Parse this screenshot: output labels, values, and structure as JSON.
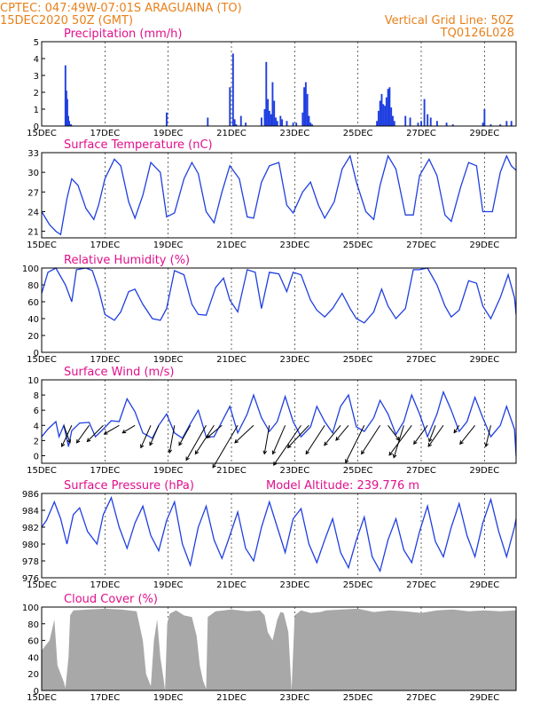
{
  "header": {
    "line1": "CPTEC:   047:49W-07:01S   ARAGUAINA (TO)",
    "line2": "15DEC2020 50Z (GMT)",
    "grid_note": "Vertical Grid Line: 50Z",
    "code": "TQ0126L028"
  },
  "colors": {
    "header": "#e8801a",
    "title": "#e0108c",
    "series": "#1f3fe0",
    "cloud": "#a8a8a8",
    "arrow": "#000000"
  },
  "chart_data": [
    {
      "type": "bar",
      "title": "Precipitation (mm/h)",
      "xlabel": "",
      "ylabel": "",
      "x_ticks": [
        "15DEC",
        "17DEC",
        "19DEC",
        "21DEC",
        "23DEC",
        "25DEC",
        "27DEC",
        "29DEC"
      ],
      "x_range": [
        0,
        15
      ],
      "ylim": [
        0,
        5
      ],
      "y_ticks": [
        0,
        1,
        2,
        3,
        4,
        5
      ],
      "x": [
        0.75,
        0.78,
        0.81,
        0.84,
        0.87,
        0.9,
        0.93,
        3.95,
        5.25,
        5.95,
        6.05,
        6.1,
        6.15,
        6.3,
        6.45,
        6.95,
        7.05,
        7.1,
        7.15,
        7.2,
        7.25,
        7.3,
        7.35,
        7.4,
        7.45,
        7.55,
        7.6,
        7.75,
        7.95,
        8.05,
        8.25,
        8.3,
        8.35,
        8.4,
        8.45,
        8.5,
        8.55,
        10.6,
        10.65,
        10.7,
        10.75,
        10.8,
        10.85,
        10.9,
        10.95,
        11.0,
        11.05,
        11.1,
        11.15,
        11.5,
        11.65,
        11.9,
        12.0,
        12.1,
        12.2,
        12.3,
        12.5,
        12.8,
        13.0,
        13.95,
        14.0,
        14.2,
        14.5,
        14.7,
        14.85
      ],
      "values": [
        3.6,
        2.1,
        1.6,
        0.6,
        0.3,
        0.1,
        0.1,
        0.8,
        0.5,
        2.3,
        4.3,
        0.4,
        0.1,
        0.6,
        0.2,
        0.5,
        1.0,
        3.8,
        1.6,
        0.9,
        0.7,
        2.6,
        1.5,
        0.5,
        0.3,
        0.6,
        0.4,
        0.3,
        0.2,
        0.2,
        0.8,
        2.3,
        2.6,
        1.9,
        0.6,
        0.2,
        0.1,
        0.3,
        0.9,
        1.5,
        1.9,
        1.3,
        1.2,
        1.7,
        2.2,
        2.3,
        1.1,
        0.6,
        0.3,
        0.6,
        0.5,
        0.2,
        0.3,
        1.6,
        0.7,
        0.5,
        0.3,
        0.2,
        0.1,
        0.2,
        1.0,
        0.1,
        0.1,
        0.3,
        0.3
      ]
    },
    {
      "type": "line",
      "title": "Surface Temperature (nC)",
      "x_ticks": [
        "15DEC",
        "17DEC",
        "19DEC",
        "21DEC",
        "23DEC",
        "25DEC",
        "27DEC",
        "29DEC"
      ],
      "x_range": [
        0,
        15
      ],
      "ylim": [
        20,
        33
      ],
      "y_ticks": [
        21,
        24,
        27,
        30,
        33
      ],
      "series": [
        {
          "x": [
            0,
            0.25,
            0.45,
            0.6,
            0.8,
            0.95,
            1.15,
            1.4,
            1.65,
            1.8,
            2.0,
            2.3,
            2.5,
            2.75,
            2.95,
            3.2,
            3.45,
            3.75,
            3.95,
            4.2,
            4.5,
            4.75,
            4.95,
            5.2,
            5.45,
            5.7,
            5.95,
            6.25,
            6.5,
            6.7,
            6.95,
            7.2,
            7.5,
            7.75,
            7.95,
            8.25,
            8.5,
            8.75,
            8.95,
            9.25,
            9.5,
            9.75,
            9.95,
            10.25,
            10.5,
            10.7,
            10.95,
            11.2,
            11.5,
            11.75,
            11.95,
            12.25,
            12.5,
            12.75,
            12.95,
            13.25,
            13.5,
            13.75,
            13.95,
            14.25,
            14.5,
            14.7,
            14.85,
            15.0
          ],
          "y": [
            24,
            22,
            21,
            20.5,
            26,
            29,
            28,
            24.5,
            22.8,
            25,
            29,
            32,
            31,
            25.5,
            23,
            26.5,
            31.5,
            30,
            23.2,
            23.8,
            29,
            31.5,
            29.8,
            24,
            22.3,
            27,
            31,
            29,
            23.2,
            23,
            28.5,
            31,
            31.5,
            25,
            23.8,
            27,
            28.5,
            25,
            23,
            25.5,
            30.5,
            32.5,
            28.5,
            24,
            22.8,
            28,
            32.5,
            30.5,
            23.5,
            23.5,
            29.5,
            32,
            29.5,
            23.5,
            22.5,
            27.8,
            31.5,
            31,
            24,
            24,
            30,
            32.5,
            31,
            30.3
          ]
        }
      ]
    },
    {
      "type": "line",
      "title": "Relative Humidity (%)",
      "x_ticks": [
        "15DEC",
        "17DEC",
        "19DEC",
        "21DEC",
        "23DEC",
        "25DEC",
        "27DEC",
        "29DEC"
      ],
      "x_range": [
        0,
        15
      ],
      "ylim": [
        0,
        100
      ],
      "y_ticks": [
        0,
        20,
        40,
        60,
        80,
        100
      ],
      "series": [
        {
          "x": [
            0,
            0.2,
            0.45,
            0.75,
            0.95,
            1.1,
            1.4,
            1.6,
            1.8,
            2.0,
            2.3,
            2.5,
            2.75,
            2.95,
            3.2,
            3.5,
            3.75,
            3.95,
            4.2,
            4.5,
            4.75,
            4.95,
            5.2,
            5.5,
            5.75,
            5.95,
            6.2,
            6.5,
            6.75,
            6.95,
            7.2,
            7.5,
            7.75,
            7.95,
            8.2,
            8.5,
            8.7,
            8.95,
            9.2,
            9.5,
            9.75,
            9.95,
            10.2,
            10.5,
            10.75,
            10.95,
            11.2,
            11.5,
            11.75,
            11.95,
            12.2,
            12.5,
            12.75,
            12.95,
            13.2,
            13.5,
            13.75,
            13.95,
            14.2,
            14.5,
            14.75,
            14.95,
            15.0
          ],
          "y": [
            70,
            95,
            100,
            80,
            60,
            98,
            100,
            97,
            75,
            45,
            38,
            48,
            72,
            75,
            57,
            40,
            38,
            52,
            97,
            92,
            57,
            45,
            44,
            77,
            88,
            62,
            48,
            98,
            95,
            52,
            95,
            93,
            72,
            95,
            92,
            62,
            50,
            42,
            52,
            70,
            52,
            40,
            35,
            48,
            75,
            55,
            40,
            52,
            98,
            98,
            100,
            80,
            55,
            42,
            50,
            85,
            82,
            55,
            40,
            65,
            92,
            65,
            45
          ]
        }
      ]
    },
    {
      "type": "line",
      "title": "Surface Wind (m/s)",
      "x_ticks": [
        "15DEC",
        "17DEC",
        "19DEC",
        "21DEC",
        "23DEC",
        "25DEC",
        "27DEC",
        "29DEC"
      ],
      "x_range": [
        0,
        15
      ],
      "ylim": [
        -1,
        10
      ],
      "y_ticks": [
        0,
        2,
        4,
        6,
        8,
        10
      ],
      "series": [
        {
          "x": [
            0,
            0.2,
            0.45,
            0.55,
            0.7,
            0.85,
            0.95,
            1.2,
            1.5,
            1.7,
            1.95,
            2.2,
            2.45,
            2.7,
            2.95,
            3.2,
            3.5,
            3.7,
            3.95,
            4.2,
            4.45,
            4.7,
            4.95,
            5.2,
            5.45,
            5.7,
            5.95,
            6.2,
            6.5,
            6.7,
            6.95,
            7.2,
            7.45,
            7.7,
            7.95,
            8.2,
            8.5,
            8.7,
            8.95,
            9.2,
            9.45,
            9.7,
            9.95,
            10.2,
            10.5,
            10.7,
            10.95,
            11.2,
            11.45,
            11.7,
            11.95,
            12.2,
            12.5,
            12.7,
            12.95,
            13.2,
            13.45,
            13.7,
            13.95,
            14.2,
            14.5,
            14.7,
            14.95,
            15.0
          ],
          "y": [
            2.5,
            3.5,
            4.5,
            2.5,
            4,
            1.2,
            3.3,
            4.3,
            4.4,
            2.5,
            3.5,
            4.6,
            4.5,
            7.5,
            5.8,
            3,
            2.3,
            4,
            5.5,
            3,
            2.3,
            4.2,
            6,
            2.5,
            2.5,
            4.5,
            6.5,
            3,
            5.5,
            8,
            5,
            3.2,
            4.5,
            7.8,
            4.5,
            2.5,
            3.8,
            6.5,
            4.5,
            3,
            6.5,
            8,
            3.8,
            3.2,
            5,
            7.3,
            5.5,
            2.8,
            4.5,
            8,
            5.5,
            2.5,
            5.5,
            8.4,
            6,
            3.2,
            4.5,
            7.7,
            5,
            2.5,
            4,
            6.5,
            3.5,
            0
          ]
        }
      ],
      "wind_vectors": [
        {
          "x": 0.7,
          "u": -0.5,
          "v": 1.4
        },
        {
          "x": 0.95,
          "u": 0.8,
          "v": 1.7
        },
        {
          "x": 1.5,
          "u": 1.0,
          "v": 1.4
        },
        {
          "x": 1.95,
          "u": 1.3,
          "v": 1.3
        },
        {
          "x": 2.45,
          "u": 1.2,
          "v": 0.7
        },
        {
          "x": 2.95,
          "u": 1.0,
          "v": 0.6
        },
        {
          "x": 3.45,
          "u": 0.8,
          "v": 1.8
        },
        {
          "x": 3.7,
          "u": 0.7,
          "v": 1.6
        },
        {
          "x": 4.2,
          "u": 0.4,
          "v": 2.2
        },
        {
          "x": 4.7,
          "u": 0.9,
          "v": 1.6
        },
        {
          "x": 5.2,
          "u": 1.6,
          "v": 2.8
        },
        {
          "x": 5.45,
          "u": 1.5,
          "v": 2.3
        },
        {
          "x": 5.7,
          "u": 1.2,
          "v": 1.0
        },
        {
          "x": 6.2,
          "u": 2.0,
          "v": 3.4
        },
        {
          "x": 6.7,
          "u": 1.5,
          "v": 1.4
        },
        {
          "x": 7.2,
          "u": 0.4,
          "v": 2.3
        },
        {
          "x": 7.7,
          "u": 1.0,
          "v": 2.3
        },
        {
          "x": 8.2,
          "u": 2.2,
          "v": 3.2
        },
        {
          "x": 8.45,
          "u": 1.7,
          "v": 1.8
        },
        {
          "x": 8.95,
          "u": 1.5,
          "v": 2.3
        },
        {
          "x": 9.45,
          "u": 1.3,
          "v": 1.6
        },
        {
          "x": 9.7,
          "u": 1.0,
          "v": 1.2
        },
        {
          "x": 10.2,
          "u": 1.5,
          "v": 3.0
        },
        {
          "x": 10.7,
          "u": 1.5,
          "v": 2.3
        },
        {
          "x": 10.95,
          "u": -0.9,
          "v": 1.2
        },
        {
          "x": 11.45,
          "u": 0.8,
          "v": 2.6
        },
        {
          "x": 11.7,
          "u": 1.8,
          "v": 2.4
        },
        {
          "x": 12.2,
          "u": 1.1,
          "v": 1.5
        },
        {
          "x": 12.45,
          "u": 0.5,
          "v": 1.3
        },
        {
          "x": 12.7,
          "u": 1.2,
          "v": 1.7
        },
        {
          "x": 13.2,
          "u": 0.4,
          "v": 0.6
        },
        {
          "x": 13.7,
          "u": 1.2,
          "v": 1.5
        },
        {
          "x": 14.2,
          "u": 0.4,
          "v": 1.7
        }
      ]
    },
    {
      "type": "line",
      "title": "Surface Pressure (hPa)",
      "annotation": "Model Altitude: 239.776 m",
      "x_ticks": [
        "15DEC",
        "17DEC",
        "19DEC",
        "21DEC",
        "23DEC",
        "25DEC",
        "27DEC",
        "29DEC"
      ],
      "x_range": [
        0,
        15
      ],
      "ylim": [
        976,
        986
      ],
      "y_ticks": [
        976,
        978,
        980,
        982,
        984,
        986
      ],
      "series": [
        {
          "x": [
            0,
            0.15,
            0.4,
            0.6,
            0.8,
            1.0,
            1.2,
            1.45,
            1.75,
            1.95,
            2.2,
            2.45,
            2.7,
            2.95,
            3.2,
            3.45,
            3.7,
            3.95,
            4.2,
            4.45,
            4.7,
            4.95,
            5.2,
            5.45,
            5.7,
            5.95,
            6.2,
            6.45,
            6.7,
            6.95,
            7.2,
            7.45,
            7.7,
            7.95,
            8.2,
            8.45,
            8.7,
            8.95,
            9.2,
            9.45,
            9.7,
            9.95,
            10.2,
            10.45,
            10.7,
            10.95,
            11.2,
            11.45,
            11.7,
            11.95,
            12.2,
            12.45,
            12.7,
            12.95,
            13.2,
            13.45,
            13.7,
            13.95,
            14.2,
            14.45,
            14.7,
            14.95,
            15.0
          ],
          "y": [
            982,
            982.8,
            985,
            983,
            980,
            983.5,
            984.3,
            981.5,
            980,
            983.5,
            985.5,
            982,
            979.5,
            982.5,
            984.5,
            981,
            979.2,
            982.8,
            985,
            980,
            977.5,
            982,
            984.5,
            980.5,
            978.3,
            981,
            983.8,
            979.5,
            978,
            982,
            985,
            982,
            979,
            983,
            984.2,
            980,
            977.8,
            980.5,
            983,
            979,
            977.2,
            980.5,
            983.2,
            978.5,
            976.8,
            980.5,
            983,
            979.3,
            977.8,
            981.5,
            984.5,
            980.3,
            978.5,
            982,
            984.8,
            981,
            978.5,
            982.5,
            985.3,
            981.5,
            978.5,
            982,
            983
          ]
        }
      ]
    },
    {
      "type": "area",
      "title": "Cloud Cover (%)",
      "x_ticks": [
        "15DEC",
        "17DEC",
        "19DEC",
        "21DEC",
        "23DEC",
        "25DEC",
        "27DEC",
        "29DEC"
      ],
      "x_range": [
        0,
        15
      ],
      "ylim": [
        0,
        100
      ],
      "y_ticks": [
        0,
        20,
        40,
        60,
        80,
        100
      ],
      "series": [
        {
          "x": [
            0,
            0.25,
            0.4,
            0.5,
            0.7,
            0.75,
            0.85,
            0.9,
            1.0,
            1.5,
            2.0,
            2.5,
            3.0,
            3.2,
            3.3,
            3.45,
            3.55,
            3.65,
            3.75,
            3.85,
            3.9,
            3.97,
            4.05,
            4.25,
            4.5,
            4.75,
            4.9,
            5.0,
            5.1,
            5.2,
            5.25,
            5.5,
            6.0,
            6.5,
            6.9,
            7.05,
            7.15,
            7.3,
            7.45,
            7.55,
            7.65,
            7.8,
            7.9,
            8.0,
            8.2,
            8.5,
            8.8,
            9.0,
            9.5,
            10.0,
            10.5,
            11.0,
            11.5,
            12.0,
            12.5,
            13.0,
            13.5,
            14.0,
            14.5,
            15.0
          ],
          "y": [
            48,
            60,
            85,
            30,
            10,
            3,
            40,
            90,
            96,
            97,
            98,
            97,
            95,
            60,
            20,
            5,
            60,
            85,
            40,
            15,
            0,
            80,
            92,
            96,
            90,
            88,
            65,
            30,
            12,
            2,
            88,
            95,
            97,
            95,
            96,
            90,
            70,
            60,
            85,
            94,
            93,
            70,
            0,
            90,
            96,
            93,
            94,
            96,
            97,
            98,
            94,
            96,
            95,
            93,
            96,
            97,
            95,
            96,
            95,
            96
          ]
        }
      ]
    }
  ]
}
